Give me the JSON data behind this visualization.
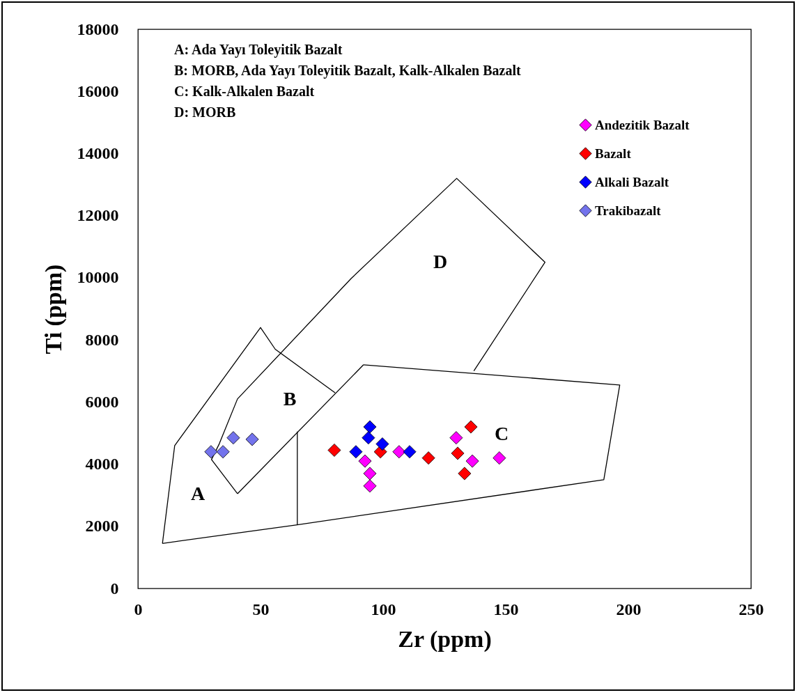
{
  "chart_data": {
    "type": "scatter",
    "xlabel": "Zr (ppm)",
    "ylabel": "Ti (ppm)",
    "xlim": [
      0,
      250
    ],
    "ylim": [
      0,
      18000
    ],
    "xticks": [
      0,
      50,
      100,
      150,
      200,
      250
    ],
    "yticks": [
      0,
      2000,
      4000,
      6000,
      8000,
      10000,
      12000,
      14000,
      16000,
      18000
    ],
    "grid": false,
    "legend": "top right",
    "marker": "diamond",
    "series": [
      {
        "name": "Andezitik Bazalt",
        "color": "#ff00ff",
        "x": [
          92.6,
          94.6,
          94.6,
          106.5,
          129.8,
          136.4,
          147.4
        ],
        "values": [
          4100,
          3700,
          3300,
          4400,
          4850,
          4100,
          4200
        ]
      },
      {
        "name": "Bazalt",
        "color": "#ff0000",
        "x": [
          80.1,
          98.9,
          118.5,
          135.8,
          130.4,
          133.2
        ],
        "values": [
          4450,
          4400,
          4200,
          5200,
          4350,
          3700
        ]
      },
      {
        "name": "Alkali Bazalt",
        "color": "#0000ff",
        "x": [
          94.6,
          94.0,
          99.7,
          88.9,
          110.8
        ],
        "values": [
          5200,
          4850,
          4650,
          4400,
          4400
        ]
      },
      {
        "name": "Trakibazalt",
        "color": "#7373ec",
        "x": [
          29.8,
          34.7,
          38.9,
          46.6
        ],
        "values": [
          4400,
          4400,
          4850,
          4800
        ]
      },
      {
        "type": "line",
        "marker": "none",
        "color": "#000000",
        "line_style": "solid",
        "x": [
          10,
          15,
          50,
          56,
          80.4
        ],
        "values": [
          1450,
          4600,
          8400,
          7700,
          6300
        ]
      },
      {
        "type": "line",
        "marker": "none",
        "color": "#000000",
        "line_style": "solid",
        "x": [
          10,
          65,
          190,
          196.5,
          92
        ],
        "values": [
          1450,
          2050,
          3500,
          6550,
          7200
        ]
      },
      {
        "type": "line",
        "marker": "none",
        "color": "#000000",
        "line_style": "solid",
        "x": [
          92,
          40.6
        ],
        "values": [
          7200,
          3050
        ]
      },
      {
        "type": "line",
        "marker": "none",
        "color": "#000000",
        "line_style": "solid",
        "x": [
          65,
          65
        ],
        "values": [
          2050,
          5050
        ]
      },
      {
        "type": "line",
        "marker": "none",
        "color": "#000000",
        "line_style": "solid",
        "x": [
          40.6,
          30,
          33.2,
          40.6,
          87,
          130,
          166,
          137
        ],
        "values": [
          3050,
          4150,
          4660,
          6100,
          9980,
          13200,
          10500,
          7000
        ]
      }
    ],
    "annotations": [
      "A: Ada Yayı Toleyitik Bazalt",
      "B: MORB, Ada Yayı Toleyitik Bazalt, Kalk-Alkalen Bazalt",
      "C: Kalk-Alkalen Bazalt",
      "D: MORB",
      "A",
      "B",
      "C",
      "D"
    ]
  }
}
